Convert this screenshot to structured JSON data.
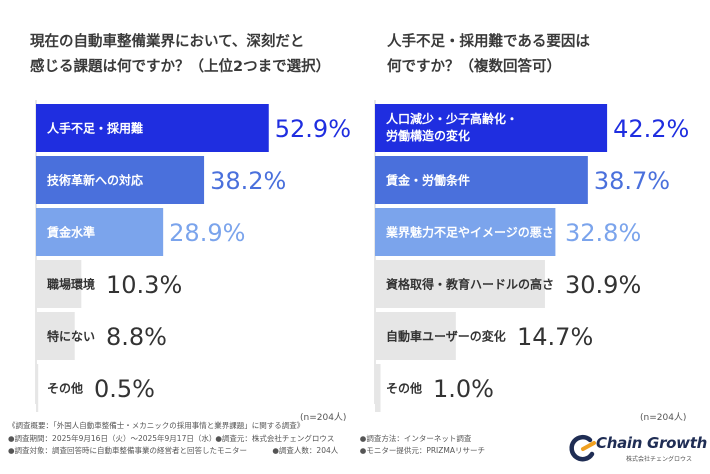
{
  "chart_data": [
    {
      "type": "bar",
      "orientation": "horizontal",
      "title_lines": [
        "現在の自動車整備業界において、深刻だと",
        "感じる課題は何ですか？（上位2つまで選択）"
      ],
      "categories": [
        "人手不足・採用難",
        "技術革新への対応",
        "賃金水準",
        "職場環境",
        "特にない",
        "その他"
      ],
      "values": [
        52.9,
        38.2,
        28.9,
        10.3,
        8.8,
        0.5
      ],
      "value_labels": [
        "52.9%",
        "38.2%",
        "28.9%",
        "10.3%",
        "8.8%",
        "0.5%"
      ],
      "bar_colors": [
        "#1f2ee0",
        "#4a70dc",
        "#7ba4ec",
        "#e6e6e6",
        "#e6e6e6",
        "#e6e6e6"
      ],
      "note": "(n=204人)"
    },
    {
      "type": "bar",
      "orientation": "horizontal",
      "title_lines": [
        "人手不足・採用難である要因は",
        "何ですか？（複数回答可）"
      ],
      "categories": [
        "人口減少・少子高齢化・|労働構造の変化",
        "賃金・労働条件",
        "業界魅力不足やイメージの悪さ",
        "資格取得・教育ハードルの高さ",
        "自動車ユーザーの変化",
        "その他"
      ],
      "values": [
        42.2,
        38.7,
        32.8,
        30.9,
        14.7,
        1.0
      ],
      "value_labels": [
        "42.2%",
        "38.7%",
        "32.8%",
        "30.9%",
        "14.7%",
        "1.0%"
      ],
      "bar_colors": [
        "#1f2ee0",
        "#4a70dc",
        "#7ba4ec",
        "#e6e6e6",
        "#e6e6e6",
        "#e6e6e6"
      ],
      "note": "(n=204人)"
    }
  ],
  "footer": {
    "lines": [
      [
        "《調査概要：「外国人自動車整備士・メカニックの採用事情と業界課題」に関する調査》"
      ],
      [
        "●調査期間：2025年9月16日（火）〜2025年9月17日（水）",
        "●調査元：株式会社チェングロウス",
        "●調査方法：インターネット調査"
      ],
      [
        "●調査対象：調査回答時に自動車整備事業の経営者と回答したモニター",
        "●調査人数：204人",
        "●モニター提供元：PRIZMAリサーチ"
      ]
    ]
  },
  "logo": {
    "name": "Chain Growth",
    "sub": "株式会社チェングロウス",
    "colors": {
      "dark": "#1f2d54",
      "accent": "#f0a020"
    }
  }
}
